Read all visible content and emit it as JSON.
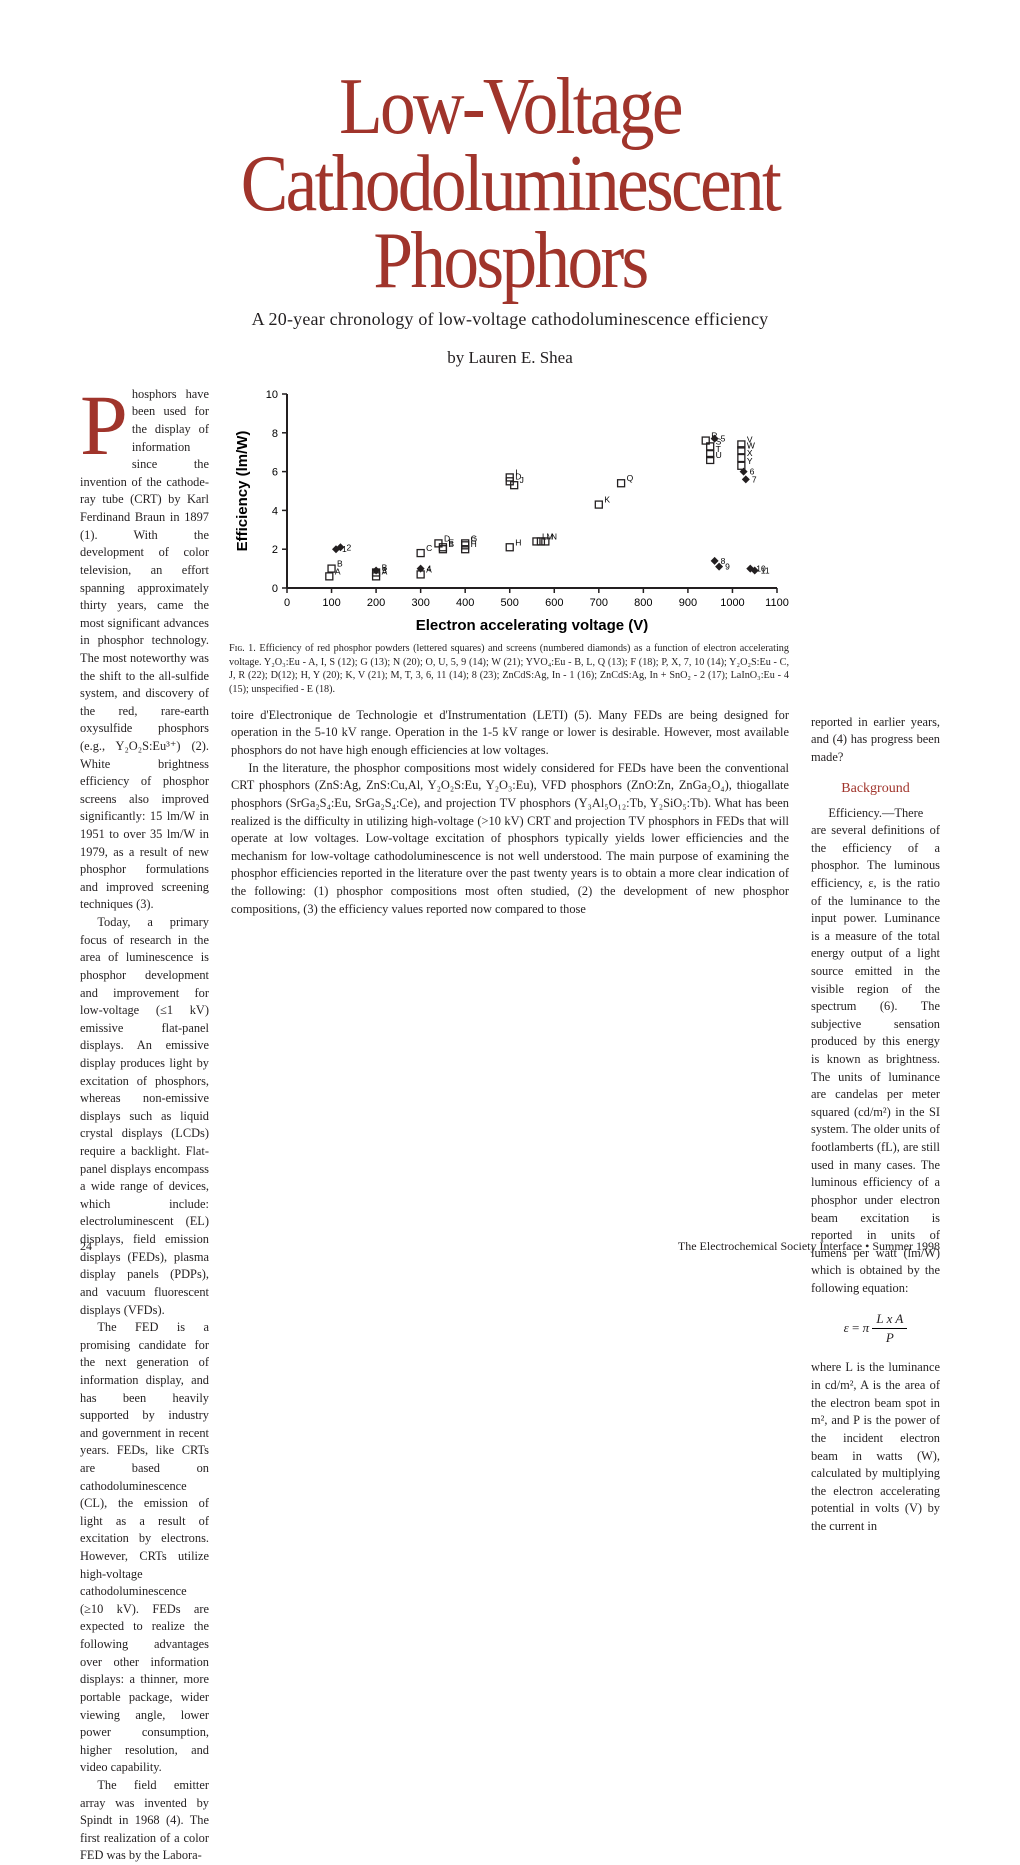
{
  "headline_line1": "Low-Voltage",
  "headline_line2": "Cathodoluminescent Phosphors",
  "subtitle": "A 20-year chronology of low-voltage cathodoluminescence efficiency",
  "byline": "by Lauren E. Shea",
  "accent_color": "#a0342b",
  "text_color": "#231f20",
  "dropcap": "P",
  "intro_after_dropcap": "hosphors have been used for the display of information since the invention of the cathode-ray tube (CRT) by Karl Ferdinand Braun in 1897 (1). With the development of color television, an effort spanning approximately thirty years, came the most significant advances in phosphor technology. The most noteworthy was the shift to the all-sulfide system, and discovery of the red, rare-earth oxysulfide phosphors (e.g., Y₂O₂S:Eu³⁺) (2). White brightness efficiency of phosphor screens also improved significantly: 15 lm/W in 1951 to over 35 lm/W in 1979, as a result of new phosphor formulations and improved screening techniques (3).",
  "p2": "Today, a primary focus of research in the area of luminescence is phosphor development and improvement for low-voltage (≤1 kV) emissive flat-panel displays. An emissive display produces light by excitation of phosphors, whereas non-emissive displays such as liquid crystal displays (LCDs) require a backlight. Flat-panel displays encompass a wide range of devices, which include: electroluminescent (EL) displays, field emission displays (FEDs), plasma display panels (PDPs), and vacuum fluorescent displays (VFDs).",
  "p3": "The FED is a promising candidate for the next generation of information display, and has been heavily supported by industry and government in recent years. FEDs, like CRTs are based on cathodoluminescence (CL), the emission of light as a result of excitation by electrons. However, CRTs utilize high-voltage cathodoluminescence (≥10 kV). FEDs are expected to realize the following advantages over other information displays: a thinner, more portable package, wider viewing angle, lower power consumption, higher resolution, and video capability.",
  "p4": "The field emitter array was invented by Spindt in 1968 (4). The first realization of a color FED was by the Labora-",
  "col2_p1": "toire d'Electronique de Technologie et d'Instrumentation (LETI) (5). Many FEDs are being designed for operation in the 5-10 kV range. Operation in the 1-5 kV range or lower is desirable. However, most available phosphors do not have high enough efficiencies at low voltages.",
  "col2_p2": "In the literature, the phosphor compositions most widely considered for FEDs have been the conventional CRT phosphors (ZnS:Ag, ZnS:Cu,Al, Y₂O₂S:Eu, Y₂O₃:Eu), VFD phosphors (ZnO:Zn, ZnGa₂O₄), thiogallate phosphors (SrGa₂S₄:Eu, SrGa₂S₄:Ce), and projection TV phosphors (Y₃Al₅O₁₂:Tb, Y₂SiO₅:Tb). What has been realized is the difficulty in utilizing high-voltage (>10 kV) CRT and projection TV phosphors in FEDs that will operate at low voltages. Low-voltage excitation of phosphors typically yields lower efficiencies and the mechanism for low-voltage cathodoluminescence is not well understood. The main purpose of examining the phosphor efficiencies reported in the literature over the past twenty years is to obtain a more clear indication of the following: (1) phosphor compositions most often studied, (2) the development of new phosphor compositions, (3) the efficiency values reported now compared to those",
  "col3_p1": "reported in earlier years, and (4) has progress been made?",
  "section_head": "Background",
  "col3_p2": "Efficiency.—There are several definitions of the efficiency of a phosphor. The luminous efficiency, ε, is the ratio of the luminance to the input power. Luminance is a measure of the total energy output of a light source emitted in the visible region of the spectrum (6). The subjective sensation produced by this energy is known as brightness. The units of luminance are candelas per meter squared (cd/m²) in the SI system. The older units of footlamberts (fL), are still used in many cases. The luminous efficiency of a phosphor under electron beam excitation is reported in units of lumens per watt (lm/W) which is obtained by the following equation:",
  "col3_p3": "where L is the luminance in cd/m², A is the area of the electron beam spot in m², and P is the power of the incident electron beam in watts (W), calculated by multiplying the electron accelerating potential in volts (V) by the current in",
  "figure": {
    "ylabel": "Efficiency (lm/W)",
    "xlabel": "Electron accelerating voltage (V)",
    "xlim": [
      0,
      1100
    ],
    "xtick_step": 100,
    "ylim": [
      0,
      10
    ],
    "ytick_step": 2,
    "background": "#ffffff",
    "axis_color": "#231f20",
    "font_size_axis_title": 15,
    "font_size_ticks": 11,
    "marker_size": 7,
    "points_squares": [
      {
        "x": 95,
        "y": 0.6,
        "label": "A"
      },
      {
        "x": 100,
        "y": 1.0,
        "label": "B"
      },
      {
        "x": 200,
        "y": 0.6,
        "label": "A"
      },
      {
        "x": 200,
        "y": 0.8,
        "label": "B"
      },
      {
        "x": 300,
        "y": 0.7,
        "label": "A"
      },
      {
        "x": 300,
        "y": 1.8,
        "label": "C"
      },
      {
        "x": 340,
        "y": 2.3,
        "label": "D"
      },
      {
        "x": 350,
        "y": 2.0,
        "label": "B"
      },
      {
        "x": 350,
        "y": 2.1,
        "label": "E"
      },
      {
        "x": 400,
        "y": 2.2,
        "label": "F"
      },
      {
        "x": 400,
        "y": 2.3,
        "label": "G"
      },
      {
        "x": 400,
        "y": 2.0,
        "label": "H"
      },
      {
        "x": 500,
        "y": 5.5,
        "label": "D"
      },
      {
        "x": 500,
        "y": 5.7,
        "label": "I"
      },
      {
        "x": 510,
        "y": 5.3,
        "label": "J"
      },
      {
        "x": 500,
        "y": 2.1,
        "label": "H"
      },
      {
        "x": 560,
        "y": 2.4,
        "label": "L"
      },
      {
        "x": 570,
        "y": 2.4,
        "label": "M"
      },
      {
        "x": 580,
        "y": 2.4,
        "label": "N"
      },
      {
        "x": 700,
        "y": 4.3,
        "label": "K"
      },
      {
        "x": 750,
        "y": 5.4,
        "label": "Q"
      },
      {
        "x": 940,
        "y": 7.6,
        "label": "R"
      },
      {
        "x": 950,
        "y": 7.3,
        "label": "S"
      },
      {
        "x": 950,
        "y": 6.9,
        "label": "T"
      },
      {
        "x": 950,
        "y": 6.6,
        "label": "U"
      },
      {
        "x": 1020,
        "y": 7.4,
        "label": "V"
      },
      {
        "x": 1020,
        "y": 7.1,
        "label": "W"
      },
      {
        "x": 1020,
        "y": 6.7,
        "label": "X"
      },
      {
        "x": 1020,
        "y": 6.3,
        "label": "Y"
      }
    ],
    "points_diamonds": [
      {
        "x": 110,
        "y": 2.0,
        "label": "1"
      },
      {
        "x": 120,
        "y": 2.1,
        "label": "2"
      },
      {
        "x": 200,
        "y": 0.9,
        "label": "3"
      },
      {
        "x": 300,
        "y": 1.0,
        "label": "4"
      },
      {
        "x": 960,
        "y": 7.7,
        "label": "5"
      },
      {
        "x": 1025,
        "y": 6.0,
        "label": "6"
      },
      {
        "x": 1030,
        "y": 5.6,
        "label": "7"
      },
      {
        "x": 960,
        "y": 1.4,
        "label": "8"
      },
      {
        "x": 970,
        "y": 1.1,
        "label": "9"
      },
      {
        "x": 1040,
        "y": 1.0,
        "label": "10"
      },
      {
        "x": 1050,
        "y": 0.9,
        "label": "11"
      }
    ]
  },
  "figcaption": "Fɪɢ. 1. Efficiency of red phosphor powders (lettered squares) and screens (numbered diamonds) as a function of electron accelerating voltage. Y₂O₃:Eu - A, I, S (12); G (13); N (20); O, U, 5, 9 (14); W (21); YVO₄:Eu - B, L, Q (13); F (18); P, X, 7, 10 (14); Y₂O₂S:Eu - C, J, R (22); D(12); H, Y (20); K, V (21); M, T, 3, 6, 11 (14); 8 (23); ZnCdS:Ag, In - 1 (16); ZnCdS:Ag, In + SnO₂ - 2 (17); LaInO₃:Eu - 4 (15); unspecified - E (18).",
  "equation": {
    "var": "ε",
    "eq": "=",
    "prefix": "π",
    "num": "L x A",
    "den": "P"
  },
  "page_number": "24",
  "journal_footer": "The Electrochemical Society Interface • Summer 1998"
}
